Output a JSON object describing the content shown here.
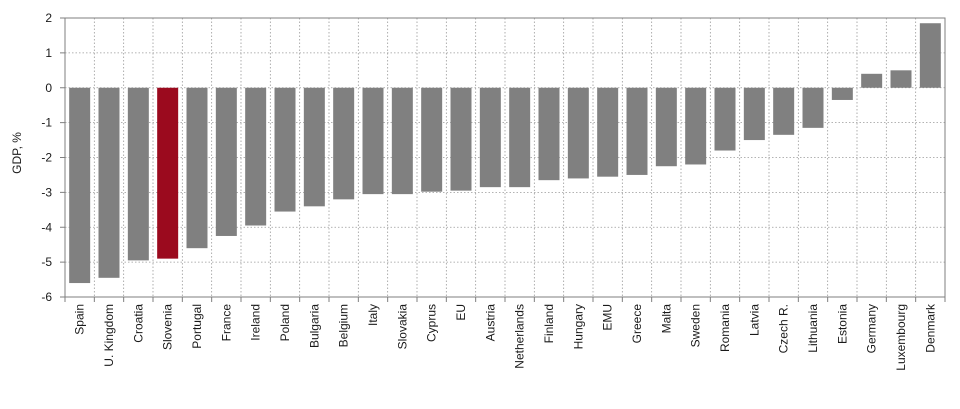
{
  "chart_data": {
    "type": "bar",
    "title": "",
    "xlabel": "",
    "ylabel": "GDP, %",
    "ylim": [
      -6,
      2
    ],
    "yticks": [
      2,
      1,
      0,
      -1,
      -2,
      -3,
      -4,
      -5,
      -6
    ],
    "grid": true,
    "categories": [
      "Spain",
      "U. Kingdom",
      "Croatia",
      "Slovenia",
      "Portugal",
      "France",
      "Ireland",
      "Poland",
      "Bulgaria",
      "Belgium",
      "Italy",
      "Slovakia",
      "Cyprus",
      "EU",
      "Austria",
      "Netherlands",
      "Finland",
      "Hungary",
      "EMU",
      "Greece",
      "Malta",
      "Sweden",
      "Romania",
      "Latvia",
      "Czech R.",
      "Lithuania",
      "Estonia",
      "Germany",
      "Luxembourg",
      "Denmark"
    ],
    "values": [
      -5.6,
      -5.45,
      -4.95,
      -4.9,
      -4.6,
      -4.25,
      -3.95,
      -3.55,
      -3.4,
      -3.2,
      -3.05,
      -3.05,
      -2.98,
      -2.95,
      -2.85,
      -2.85,
      -2.65,
      -2.6,
      -2.55,
      -2.5,
      -2.25,
      -2.2,
      -1.8,
      -1.5,
      -1.35,
      -1.15,
      -0.35,
      0.4,
      0.5,
      1.85
    ],
    "highlight": "Slovenia",
    "colors": {
      "bar": "#808080",
      "highlight": "#9b0a1e",
      "grid": "#9a9a9a",
      "axis": "#7f7f7f"
    }
  }
}
